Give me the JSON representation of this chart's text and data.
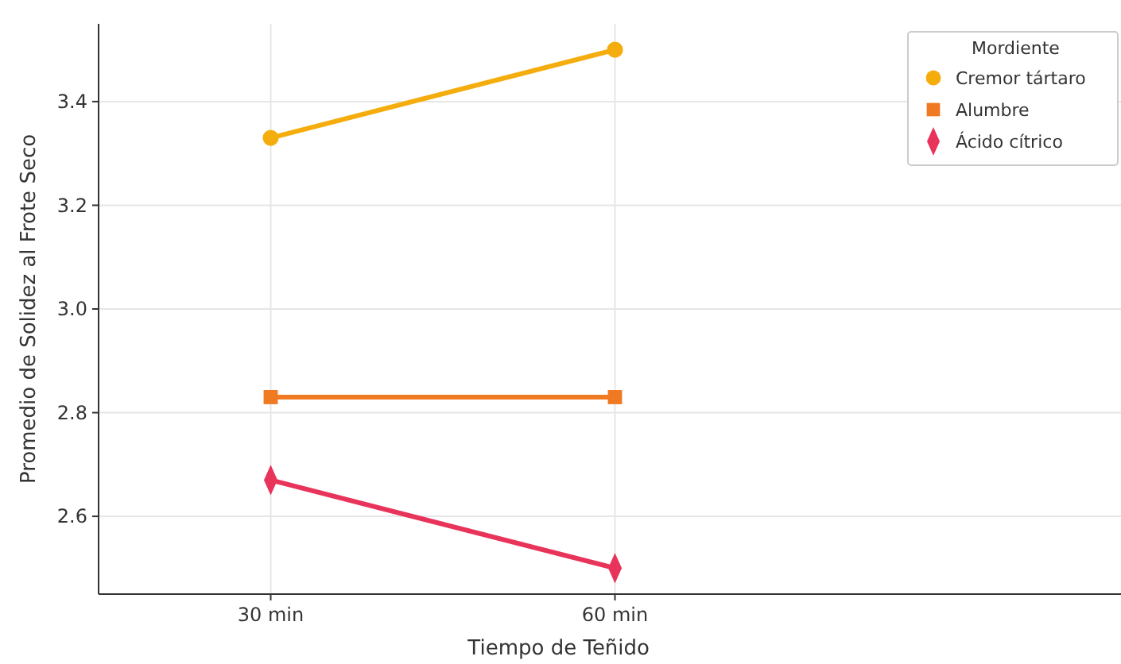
{
  "chart_data": {
    "type": "line",
    "xlabel": "Tiempo de Teñido",
    "ylabel": "Promedio de Solidez al Frote Seco",
    "legend_title": "Mordiente",
    "categories": [
      "30 min",
      "60 min"
    ],
    "series": [
      {
        "name": "Cremor tártaro",
        "color": "#f5ad0e",
        "marker": "circle",
        "values": [
          3.33,
          3.5
        ]
      },
      {
        "name": "Alumbre",
        "color": "#f07a22",
        "marker": "square",
        "values": [
          2.83,
          2.83
        ]
      },
      {
        "name": "Ácido cítrico",
        "color": "#e8345a",
        "marker": "diamond",
        "values": [
          2.67,
          2.5
        ]
      }
    ],
    "ylim": [
      2.45,
      3.55
    ],
    "yticks": [
      2.6,
      2.8,
      {
        "value": 3,
        "label": "3.0"
      },
      3.2,
      3.4
    ],
    "grid": true,
    "legend": "top right",
    "line_style": "solid"
  }
}
